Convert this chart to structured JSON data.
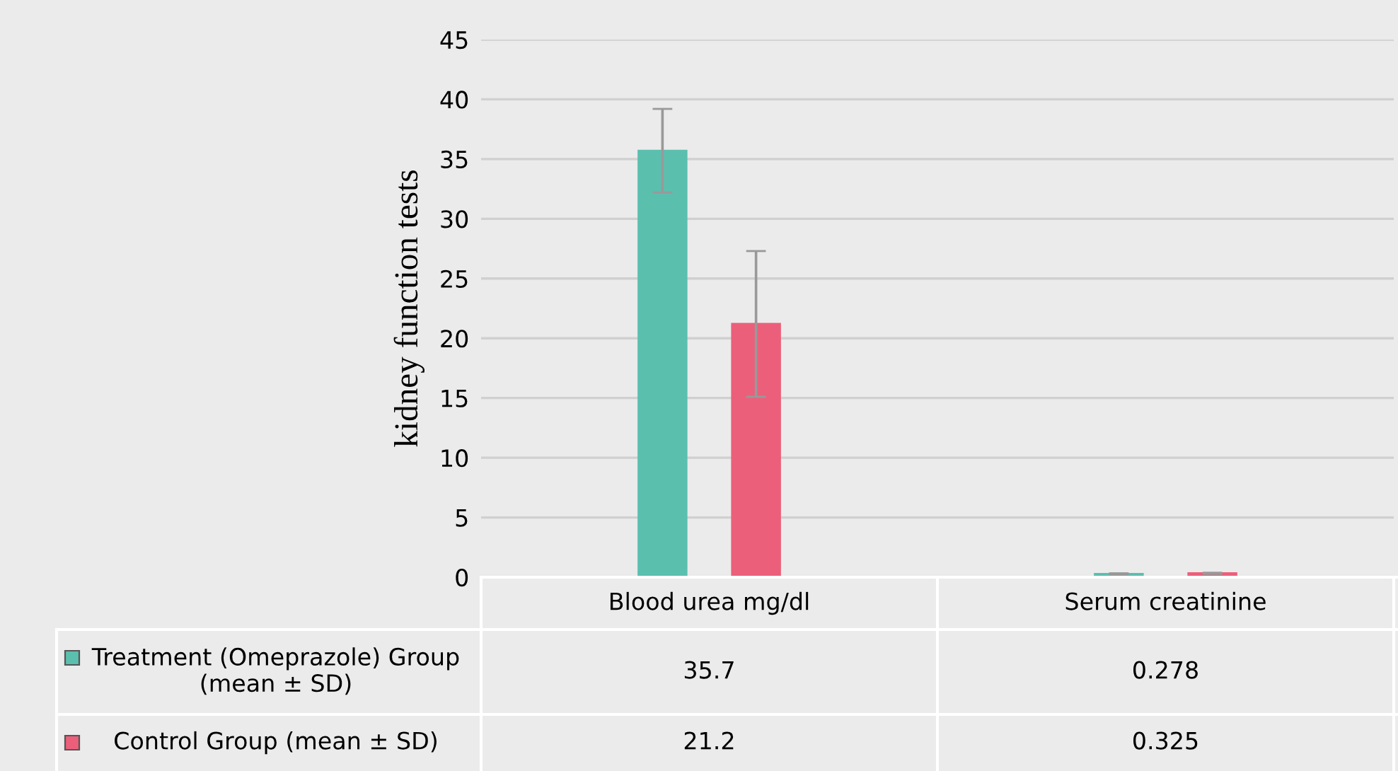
{
  "chart_data": {
    "type": "bar",
    "ylabel": "kidney function tests",
    "categories": [
      "Blood urea mg/dl",
      "Serum creatinine"
    ],
    "series": [
      {
        "name": "Treatment (Omeprazole) Group (mean ± SD)",
        "color": "#5bbfae",
        "values": [
          35.7,
          0.278
        ],
        "errors": [
          3.5,
          0.05
        ]
      },
      {
        "name": "Control Group (mean ± SD)",
        "color": "#ec5f7a",
        "values": [
          21.2,
          0.325
        ],
        "errors": [
          6.1,
          0.05
        ]
      }
    ],
    "ylim": [
      0,
      45
    ],
    "yticks": [
      0,
      5,
      10,
      15,
      20,
      25,
      30,
      35,
      40,
      45
    ],
    "grid": "y",
    "legend": "bottom",
    "data_labels": true
  }
}
